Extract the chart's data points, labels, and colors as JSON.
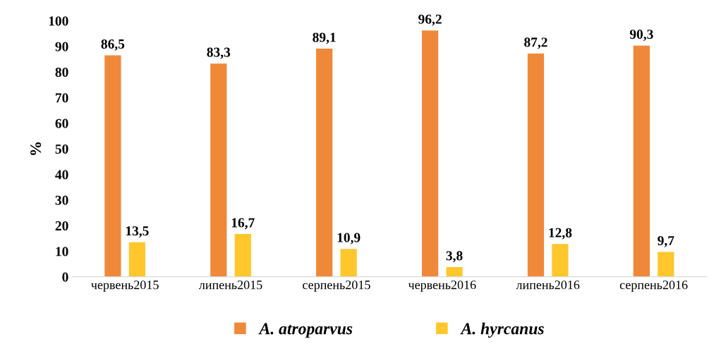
{
  "chart_data": {
    "type": "bar",
    "ylabel": "%",
    "categories": [
      "червень2015",
      "липень2015",
      "серпень2015",
      "червень2016",
      "липень2016",
      "серпень2016"
    ],
    "series": [
      {
        "name": "A. atroparvus",
        "color": "#f0883a",
        "values": [
          86.5,
          83.3,
          89.1,
          96.2,
          87.2,
          90.3
        ],
        "value_labels": [
          "86,5",
          "83,3",
          "89,1",
          "96,2",
          "87,2",
          "90,3"
        ]
      },
      {
        "name": "A. hyrcanus",
        "color": "#ffc72c",
        "values": [
          13.5,
          16.7,
          10.9,
          3.8,
          12.8,
          9.7
        ],
        "value_labels": [
          "13,5",
          "16,7",
          "10,9",
          "3,8",
          "12,8",
          "9,7"
        ]
      }
    ],
    "ylim": [
      0,
      100
    ],
    "yticks": [
      0,
      10,
      20,
      30,
      40,
      50,
      60,
      70,
      80,
      90,
      100
    ],
    "grid": false,
    "legend": "bottom"
  }
}
